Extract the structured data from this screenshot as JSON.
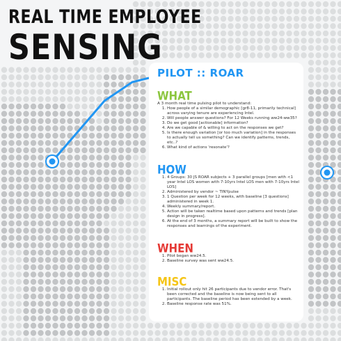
{
  "header": {
    "line1": "REAL TIME EMPLOYEE",
    "line2": "SENSING"
  },
  "card": {
    "title": "PILOT :: ROAR",
    "what": {
      "heading": "WHAT",
      "intro": "A 3 month real time pulsing pilot to understand:",
      "items": [
        "How people of a similar demographic [gr8-11, primarily technical] across varying tenure are experiencing Intel.",
        "Will people answer questions? For 12 Weeks running ww24-ww35?",
        "Do we get good [actionable] information?",
        "Are we capable of & willing to act on the responses we get?",
        "Is there enough variation [or too much variation] in the responses to actually tell us something? Can we identify patterns, trends, etc..?",
        "What kind of actions 'resonate'?"
      ]
    },
    "how": {
      "heading": "HOW",
      "items": [
        "4 Groups: 30 JS ROAR subjects + 3 parallel groups [men with <1 year Intel LOS women with 7-10yrs Intel LOS men with 7-10yrs Intel LOS]",
        "Administered by vendor ~ TINYpulse",
        "1 Question per week for 12 weeks, with baseline [3 questions] administered in week 1.",
        "Weekly summary/report.",
        "Action will be taken realtime based upon patterns and trends [plan design in progress].",
        "At the end of 3 months, a summary report will be built to show the responses and learnings of the experiment."
      ]
    },
    "when": {
      "heading": "WHEN",
      "items": [
        "Pilot began ww24.5.",
        "Baseline survey was sent ww24.5."
      ]
    },
    "misc": {
      "heading": "MISC",
      "items": [
        "Initial rollout only hit 26 participants due to vendor error. That's been corrected and the baseline is now being sent to all participants. The baseline period has been extended by a week.",
        "Baseline response rate was 51%."
      ]
    }
  },
  "colors": {
    "what": "#8cc63f",
    "how": "#2196f3",
    "when": "#e53935",
    "misc": "#f5c518",
    "accent": "#2196f3"
  }
}
